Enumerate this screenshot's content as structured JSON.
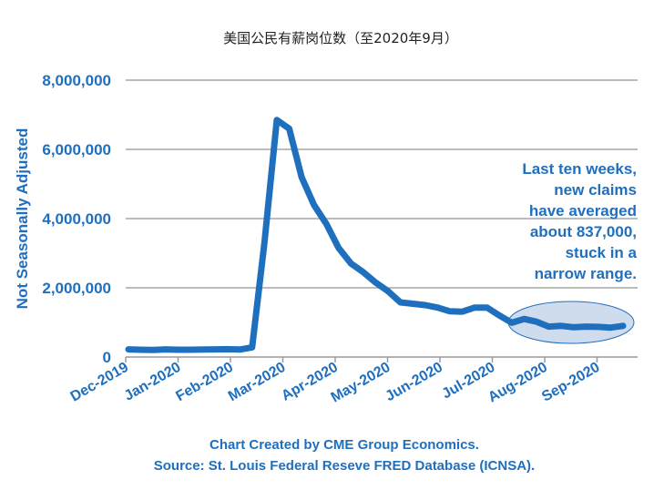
{
  "chart_data": {
    "type": "line",
    "title": "美国公民有薪岗位数（至2020年9月）",
    "ylabel": "Not Seasonally Adjusted",
    "xlabel": "",
    "ylim": [
      0,
      8000000
    ],
    "yticks": [
      0,
      2000000,
      4000000,
      6000000,
      8000000
    ],
    "ytick_labels": [
      "0",
      "2,000,000",
      "4,000,000",
      "6,000,000",
      "8,000,000"
    ],
    "xtick_labels": [
      "Dec-2019",
      "Jan-2020",
      "Feb-2020",
      "Mar-2020",
      "Apr-2020",
      "May-2020",
      "Jun-2020",
      "Jul-2020",
      "Aug-2020",
      "Sep-2020"
    ],
    "grid": true,
    "series": [
      {
        "color": "#1f6fbf",
        "values": [
          220000,
          210000,
          205000,
          220000,
          210000,
          210000,
          215000,
          220000,
          225000,
          215000,
          280000,
          3300000,
          6850000,
          6600000,
          5200000,
          4400000,
          3850000,
          3150000,
          2700000,
          2450000,
          2150000,
          1900000,
          1580000,
          1540000,
          1500000,
          1430000,
          1320000,
          1310000,
          1430000,
          1430000,
          1200000,
          990000,
          1100000,
          1020000,
          880000,
          900000,
          860000,
          880000,
          870000,
          850000,
          900000
        ]
      }
    ],
    "annotation": {
      "lines": [
        "Last ten weeks,",
        "new claims",
        "have averaged",
        "about 837,000,",
        "stuck in a",
        "narrow range."
      ]
    },
    "highlight_color": "#cfdcee",
    "footer": [
      "Chart Created by CME Group Economics.",
      "Source: St. Louis Federal Reseve FRED Database (ICNSA)."
    ]
  }
}
